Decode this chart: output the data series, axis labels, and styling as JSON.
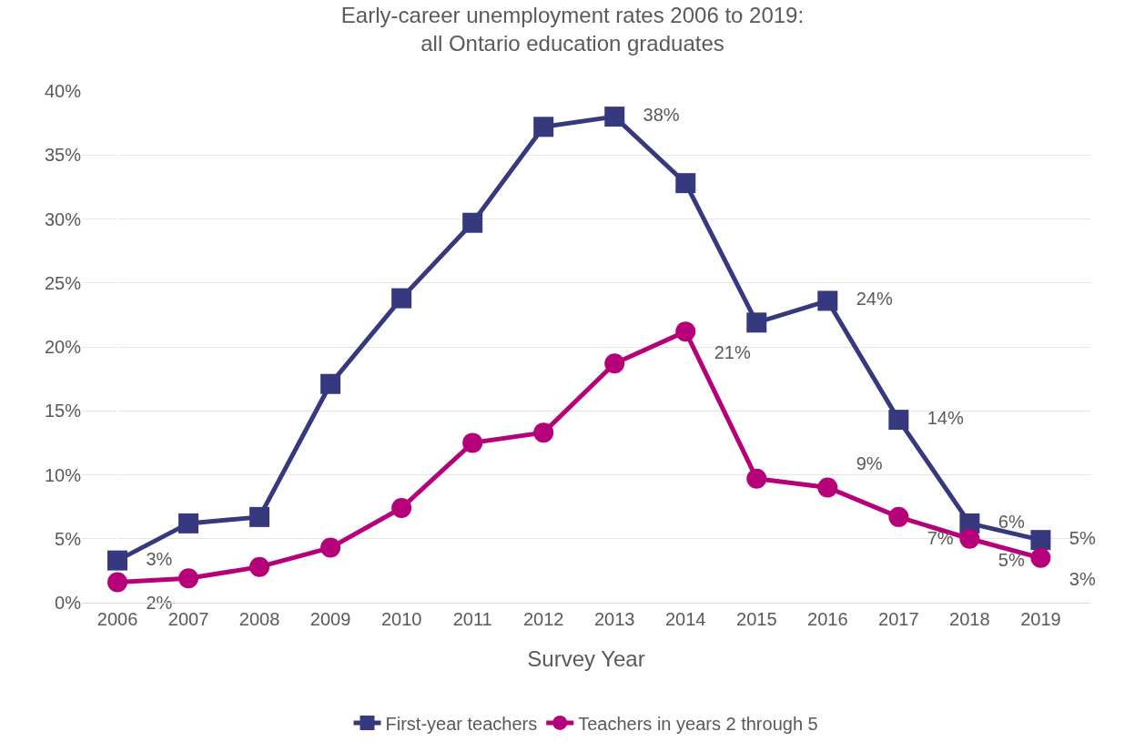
{
  "chart_data": {
    "type": "line",
    "title": "Early-career unemployment rates 2006 to 2019:\nall Ontario education graduates",
    "xlabel": "Survey Year",
    "categories": [
      "2006",
      "2007",
      "2008",
      "2009",
      "2010",
      "2011",
      "2012",
      "2013",
      "2014",
      "2015",
      "2016",
      "2017",
      "2018",
      "2019"
    ],
    "series": [
      {
        "name": "First-year teachers",
        "color": "#37397f",
        "marker": "square",
        "values": [
          3.3,
          6.2,
          6.7,
          17.1,
          23.8,
          29.7,
          37.2,
          38.0,
          32.8,
          21.9,
          23.6,
          14.3,
          6.2,
          4.9
        ],
        "value_labels": [
          "3%",
          null,
          null,
          null,
          null,
          null,
          null,
          "38%",
          null,
          null,
          "24%",
          "14%",
          "6%",
          "5%"
        ]
      },
      {
        "name": "Teachers in years 2 through 5",
        "color": "#b5007a",
        "marker": "circle",
        "values": [
          1.6,
          1.9,
          2.8,
          4.3,
          7.4,
          12.5,
          13.3,
          18.7,
          21.2,
          9.7,
          9.0,
          6.7,
          5.0,
          3.5
        ],
        "value_labels": [
          "2%",
          null,
          null,
          null,
          null,
          null,
          null,
          null,
          "21%",
          null,
          "9%",
          "7%",
          "5%",
          "3%"
        ]
      }
    ],
    "ylim": [
      0,
      40
    ],
    "yticks": [
      {
        "value": 0,
        "label": "0%"
      },
      {
        "value": 5,
        "label": "5%"
      },
      {
        "value": 10,
        "label": "10%"
      },
      {
        "value": 15,
        "label": "15%"
      },
      {
        "value": 20,
        "label": "20%"
      },
      {
        "value": 25,
        "label": "25%"
      },
      {
        "value": 30,
        "label": "30%"
      },
      {
        "value": 35,
        "label": "35%"
      },
      {
        "value": 40,
        "label": "40%"
      }
    ],
    "grid": "y",
    "legend": "bottom"
  }
}
